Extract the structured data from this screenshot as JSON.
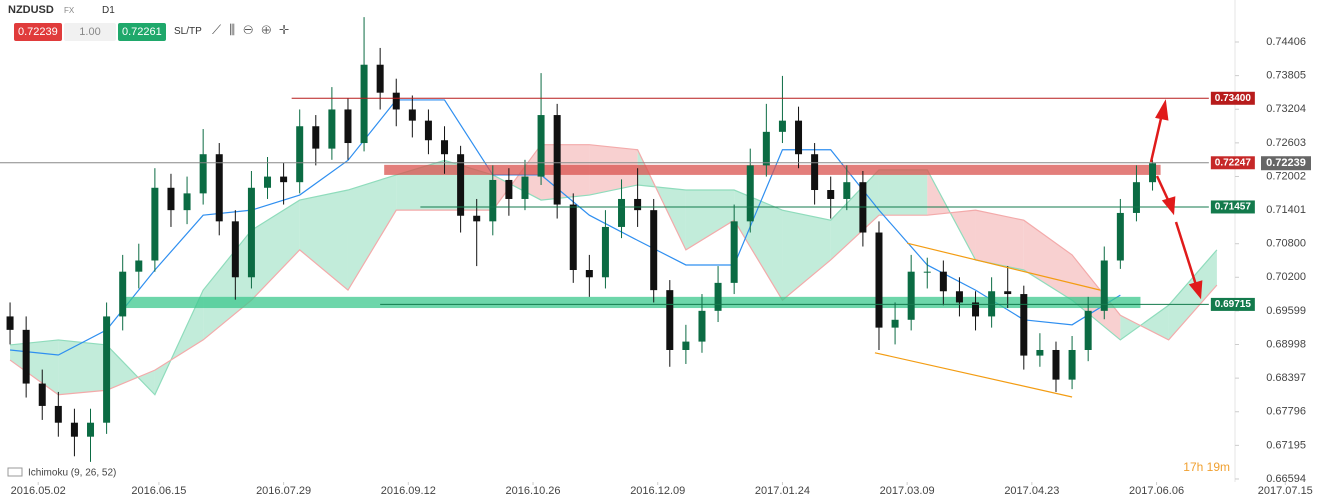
{
  "header": {
    "symbol": "NZDUSD",
    "market": "FX",
    "timeframe": "D1",
    "sell": "0.72239",
    "lot": "1.00",
    "buy": "0.72261",
    "sltp": "SL/TP"
  },
  "chart_data": {
    "type": "candlestick",
    "indicator": "Ichimoku (9, 26, 52)",
    "timer": "17h 19m",
    "xlim": [
      -9.5,
      297.5
    ],
    "ylim": [
      0.6654,
      0.75157
    ],
    "xticks": [
      {
        "value": 0,
        "label": "2016.05.02"
      },
      {
        "value": 30,
        "label": "2016.06.15"
      },
      {
        "value": 61,
        "label": "2016.07.29"
      },
      {
        "value": 92,
        "label": "2016.09.12"
      },
      {
        "value": 123,
        "label": "2016.10.26"
      },
      {
        "value": 154,
        "label": "2016.12.09"
      },
      {
        "value": 185,
        "label": "2017.01.24"
      },
      {
        "value": 216,
        "label": "2017.03.09"
      },
      {
        "value": 247,
        "label": "2017.04.23"
      },
      {
        "value": 278,
        "label": "2017.06.06"
      },
      {
        "value": 310,
        "label": "2017.07.15"
      }
    ],
    "yticks": [
      0.74406,
      0.73805,
      0.73204,
      0.72603,
      0.72002,
      0.71401,
      {
        "value": 0.708,
        "label": "0.70800"
      },
      {
        "value": 0.702,
        "label": "0.70200"
      },
      0.69599,
      0.68998,
      0.68397,
      0.67796,
      0.67195,
      0.66594
    ],
    "current_price": 0.72239,
    "candles": {
      "up_color": "#0b6b43",
      "down_color": "#111111",
      "x": [
        -7,
        -3,
        1,
        5,
        9,
        13,
        17,
        21,
        25,
        29,
        33,
        37,
        41,
        45,
        49,
        53,
        57,
        61,
        65,
        69,
        73,
        77,
        81,
        85,
        89,
        93,
        97,
        101,
        105,
        109,
        113,
        117,
        121,
        125,
        129,
        133,
        137,
        141,
        145,
        149,
        153,
        157,
        161,
        165,
        169,
        173,
        177,
        181,
        185,
        189,
        193,
        197,
        201,
        205,
        209,
        213,
        217,
        221,
        225,
        229,
        233,
        237,
        241,
        245,
        249,
        253,
        257,
        261,
        265,
        269,
        273,
        277
      ],
      "open": [
        0.695,
        0.6926,
        0.683,
        0.679,
        0.676,
        0.6735,
        0.676,
        0.695,
        0.703,
        0.705,
        0.718,
        0.714,
        0.717,
        0.724,
        0.712,
        0.702,
        0.718,
        0.72,
        0.719,
        0.729,
        0.725,
        0.732,
        0.726,
        0.74,
        0.735,
        0.732,
        0.73,
        0.7265,
        0.724,
        0.713,
        0.712,
        0.7194,
        0.716,
        0.72,
        0.731,
        0.715,
        0.7033,
        0.702,
        0.711,
        0.716,
        0.714,
        0.6997,
        0.689,
        0.6905,
        0.696,
        0.701,
        0.712,
        0.722,
        0.728,
        0.73,
        0.724,
        0.7176,
        0.716,
        0.719,
        0.71,
        0.693,
        0.6944,
        0.703,
        0.703,
        0.6995,
        0.6975,
        0.695,
        0.6995,
        0.699,
        0.688,
        0.689,
        0.6837,
        0.689,
        0.696,
        0.705,
        0.7135,
        0.719
      ],
      "high": [
        0.6975,
        0.695,
        0.6855,
        0.6815,
        0.6785,
        0.6785,
        0.6975,
        0.706,
        0.708,
        0.7215,
        0.7205,
        0.72,
        0.7285,
        0.726,
        0.714,
        0.721,
        0.7235,
        0.7225,
        0.732,
        0.731,
        0.736,
        0.734,
        0.7485,
        0.743,
        0.7375,
        0.7345,
        0.732,
        0.729,
        0.7255,
        0.716,
        0.722,
        0.7215,
        0.723,
        0.7385,
        0.733,
        0.717,
        0.706,
        0.714,
        0.7195,
        0.7215,
        0.716,
        0.7015,
        0.6935,
        0.699,
        0.704,
        0.715,
        0.725,
        0.733,
        0.738,
        0.7325,
        0.726,
        0.72,
        0.722,
        0.721,
        0.712,
        0.6975,
        0.706,
        0.7055,
        0.705,
        0.702,
        0.6995,
        0.702,
        0.704,
        0.7005,
        0.692,
        0.6905,
        0.6915,
        0.6985,
        0.7075,
        0.716,
        0.722,
        0.723
      ],
      "low": [
        0.69,
        0.6805,
        0.6765,
        0.6735,
        0.67,
        0.669,
        0.674,
        0.6925,
        0.7,
        0.703,
        0.711,
        0.7115,
        0.715,
        0.7095,
        0.698,
        0.7,
        0.716,
        0.715,
        0.717,
        0.722,
        0.723,
        0.723,
        0.7245,
        0.732,
        0.729,
        0.727,
        0.724,
        0.7205,
        0.71,
        0.704,
        0.7095,
        0.713,
        0.714,
        0.7185,
        0.7125,
        0.701,
        0.6985,
        0.7,
        0.709,
        0.711,
        0.6975,
        0.686,
        0.6865,
        0.6885,
        0.694,
        0.699,
        0.71,
        0.72,
        0.726,
        0.7215,
        0.715,
        0.7125,
        0.714,
        0.7075,
        0.689,
        0.69,
        0.6925,
        0.7,
        0.697,
        0.695,
        0.6925,
        0.693,
        0.6965,
        0.6855,
        0.686,
        0.6815,
        0.682,
        0.687,
        0.6945,
        0.7035,
        0.712,
        0.7175
      ],
      "close": [
        0.6926,
        0.683,
        0.679,
        0.676,
        0.6735,
        0.676,
        0.695,
        0.703,
        0.705,
        0.718,
        0.714,
        0.717,
        0.724,
        0.712,
        0.702,
        0.718,
        0.72,
        0.719,
        0.729,
        0.725,
        0.732,
        0.726,
        0.74,
        0.735,
        0.732,
        0.73,
        0.7265,
        0.724,
        0.713,
        0.712,
        0.7194,
        0.716,
        0.72,
        0.731,
        0.715,
        0.7033,
        0.702,
        0.711,
        0.716,
        0.714,
        0.6997,
        0.689,
        0.6905,
        0.696,
        0.701,
        0.712,
        0.722,
        0.728,
        0.73,
        0.724,
        0.7176,
        0.716,
        0.719,
        0.71,
        0.693,
        0.6944,
        0.703,
        0.703,
        0.6995,
        0.6975,
        0.695,
        0.6995,
        0.699,
        0.688,
        0.689,
        0.6837,
        0.689,
        0.696,
        0.705,
        0.7135,
        0.719,
        0.72239
      ]
    },
    "ichimoku": {
      "x": [
        -7,
        5,
        17,
        29,
        41,
        53,
        65,
        77,
        89,
        101,
        113,
        125,
        137,
        149,
        161,
        173,
        185,
        197,
        209,
        221,
        233,
        245,
        257,
        269,
        281,
        293
      ],
      "span_a": [
        0.6899,
        0.6908,
        0.6899,
        0.681,
        0.6997,
        0.7104,
        0.7158,
        0.7176,
        0.7203,
        0.7229,
        0.7203,
        0.7158,
        0.7167,
        0.7185,
        0.7176,
        0.7176,
        0.714,
        0.7122,
        0.7212,
        0.7212,
        0.7051,
        0.7033,
        0.6979,
        0.6908,
        0.697,
        0.7069
      ],
      "span_b": [
        0.6872,
        0.681,
        0.6818,
        0.6854,
        0.6908,
        0.6979,
        0.7069,
        0.6997,
        0.714,
        0.714,
        0.714,
        0.7257,
        0.7257,
        0.7248,
        0.7069,
        0.7122,
        0.6979,
        0.7051,
        0.7131,
        0.7131,
        0.714,
        0.7122,
        0.706,
        0.6952,
        0.6908,
        0.7006
      ],
      "kijun": [
        0.689,
        0.6881,
        0.6926,
        0.7033,
        0.7131,
        0.714,
        0.7167,
        0.7229,
        0.7337,
        0.7337,
        0.7203,
        0.7203,
        0.7131,
        0.7086,
        0.7042,
        0.7042,
        0.7248,
        0.7248,
        0.714,
        0.7042,
        0.6997,
        0.6944,
        0.6935,
        0.6988,
        null,
        null
      ],
      "bull_color": "#8fdcbc",
      "bear_color": "#f3aaaa",
      "kijun_color": "#2f8ff0"
    },
    "zones": [
      {
        "range": [
          0.7203,
          0.7221
        ],
        "from": 86,
        "to": 279,
        "color": "#d9534f"
      },
      {
        "range": [
          0.6965,
          0.6985
        ],
        "from": 21,
        "to": 274,
        "color": "#3cc88e"
      }
    ],
    "levels": [
      {
        "value": 0.734,
        "label": "0.73400",
        "from": 63,
        "to": 291,
        "color": "#b71c1c"
      },
      {
        "value": 0.72247,
        "label": "0.72247",
        "from": -9.5,
        "to": 291,
        "color": "#c62828"
      },
      {
        "value": 0.71457,
        "label": "0.71457",
        "from": 95,
        "to": 291,
        "color": "#137a4c"
      },
      {
        "value": 0.69715,
        "label": "0.69715",
        "from": 85,
        "to": 291,
        "color": "#137a4c"
      }
    ],
    "channel": {
      "color": "#f39c12",
      "lines": [
        {
          "x": [
            216,
            264
          ],
          "y": [
            0.7081,
            0.6997
          ]
        },
        {
          "x": [
            208,
            257
          ],
          "y": [
            0.6885,
            0.6806
          ]
        }
      ]
    }
  }
}
